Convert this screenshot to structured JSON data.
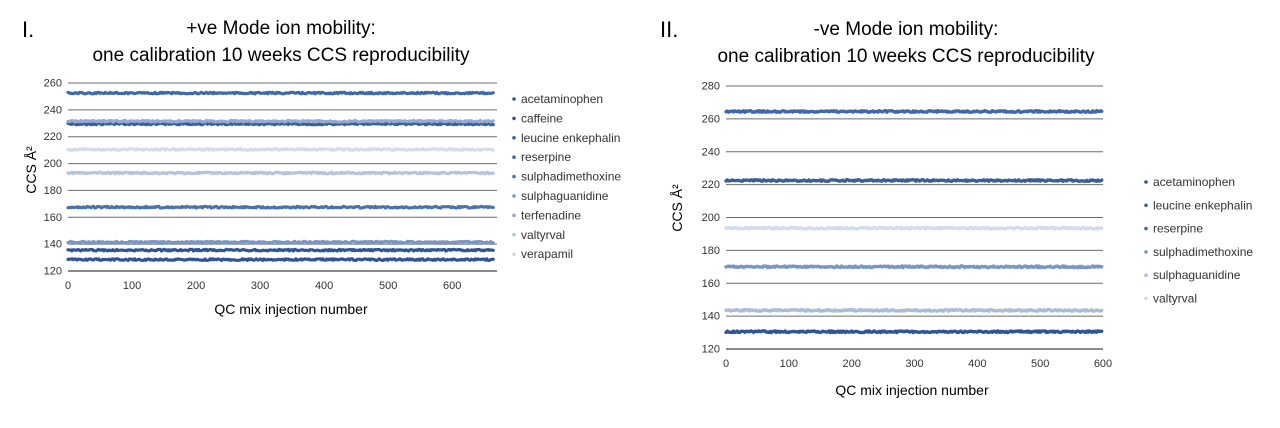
{
  "panels": [
    {
      "numeral": "I.",
      "title_lines": [
        "+ve Mode ion mobility:",
        "one calibration 10 weeks CCS reproducibility"
      ],
      "chart_data": {
        "type": "scatter",
        "title": "+ve Mode ion mobility: one calibration 10 weeks CCS reproducibility",
        "xlabel": "QC mix injection number",
        "ylabel": "CCS Å²",
        "xlim": [
          0,
          670
        ],
        "ylim": [
          120,
          260
        ],
        "xticks": [
          0,
          100,
          200,
          300,
          400,
          500,
          600
        ],
        "yticks": [
          120,
          140,
          160,
          180,
          200,
          220,
          240,
          260
        ],
        "n_points": 665,
        "series": [
          {
            "name": "acetaminophen",
            "value": 128.5,
            "color": "#2f5597"
          },
          {
            "name": "caffeine",
            "value": 135.5,
            "color": "#2f5597"
          },
          {
            "name": "leucine enkephalin",
            "value": 229.5,
            "color": "#3a5f99"
          },
          {
            "name": "reserpine",
            "value": 252.5,
            "color": "#3d6aa8"
          },
          {
            "name": "sulphadimethoxine",
            "value": 167.5,
            "color": "#4a72ad"
          },
          {
            "name": "sulphaguanidine",
            "value": 141.5,
            "color": "#7b96c4"
          },
          {
            "name": "terfenadine",
            "value": 231.5,
            "color": "#93a9d0"
          },
          {
            "name": "valtyrval",
            "value": 193.0,
            "color": "#b4c4de"
          },
          {
            "name": "verapamil",
            "value": 210.5,
            "color": "#d2dcec"
          }
        ]
      }
    },
    {
      "numeral": "II.",
      "title_lines": [
        "-ve Mode ion mobility:",
        "one calibration 10 weeks CCS reproducibility"
      ],
      "chart_data": {
        "type": "scatter",
        "title": "-ve Mode ion mobility: one calibration 10 weeks CCS reproducibility",
        "xlabel": "QC mix injection number",
        "ylabel": "CCS Å²",
        "xlim": [
          0,
          600
        ],
        "ylim": [
          120,
          280
        ],
        "xticks": [
          0,
          100,
          200,
          300,
          400,
          500,
          600
        ],
        "yticks": [
          120,
          140,
          160,
          180,
          200,
          220,
          240,
          260,
          280
        ],
        "n_points": 600,
        "series": [
          {
            "name": "acetaminophen",
            "value": 130.5,
            "color": "#2f5597"
          },
          {
            "name": "leucine enkephalin",
            "value": 222.5,
            "color": "#3a5f99"
          },
          {
            "name": "reserpine",
            "value": 264.5,
            "color": "#3d6aa8"
          },
          {
            "name": "sulphadimethoxine",
            "value": 170.0,
            "color": "#7b96c4"
          },
          {
            "name": "sulphaguanidine",
            "value": 143.5,
            "color": "#a9bcdc"
          },
          {
            "name": "valtyrval",
            "value": 193.5,
            "color": "#d2dcec"
          }
        ]
      }
    }
  ]
}
